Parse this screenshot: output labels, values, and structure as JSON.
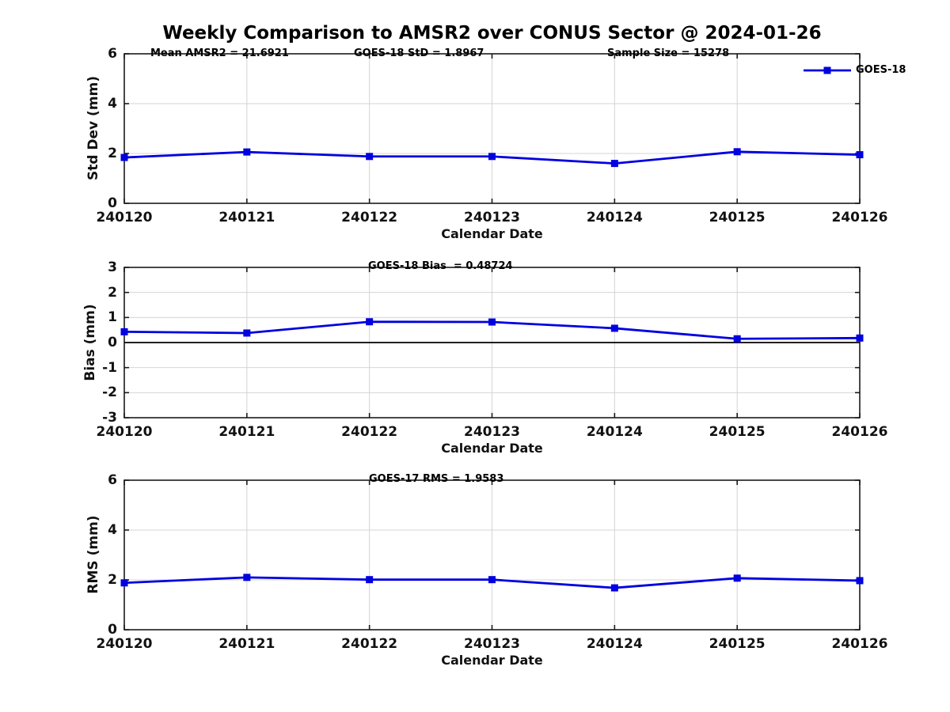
{
  "title": "Weekly Comparison to AMSR2 over CONUS Sector @ 2024-01-26",
  "legend": {
    "label": "GOES-18",
    "position": "top-right"
  },
  "colors": {
    "line": "#0000E0",
    "marker": "#0000E0",
    "grid": "#D4D4D4",
    "axis": "#1A1A1A",
    "zero_line": "#000000",
    "text": "#111111",
    "background": "#FFFFFF"
  },
  "chart_data": [
    {
      "type": "line",
      "panel": "std-dev",
      "annotations": [
        "Mean AMSR2 = 21.6921",
        "GOES-18 StD = 1.8967",
        "Sample Size = 15278"
      ],
      "ylabel": "Std Dev (mm)",
      "xlabel": "Calendar Date",
      "categories": [
        "240120",
        "240121",
        "240122",
        "240123",
        "240124",
        "240125",
        "240126"
      ],
      "ylim": [
        0,
        6
      ],
      "yticks": [
        0,
        2,
        4,
        6
      ],
      "grid": true,
      "zero_line": false,
      "series": [
        {
          "name": "GOES-18",
          "values": [
            1.84,
            2.06,
            1.88,
            1.88,
            1.6,
            2.07,
            1.95
          ]
        }
      ]
    },
    {
      "type": "line",
      "panel": "bias",
      "annotations": [
        "GOES-18 Bias  = 0.48724"
      ],
      "ylabel": "Bias (mm)",
      "xlabel": "Calendar Date",
      "categories": [
        "240120",
        "240121",
        "240122",
        "240123",
        "240124",
        "240125",
        "240126"
      ],
      "ylim": [
        -3,
        3
      ],
      "yticks": [
        3,
        2,
        1,
        0,
        -1,
        -2,
        -3
      ],
      "grid": true,
      "zero_line": true,
      "series": [
        {
          "name": "GOES-18",
          "values": [
            0.43,
            0.38,
            0.83,
            0.82,
            0.57,
            0.15,
            0.18
          ]
        }
      ]
    },
    {
      "type": "line",
      "panel": "rms",
      "annotations": [
        "GOES-17 RMS = 1.9583"
      ],
      "ylabel": "RMS (mm)",
      "xlabel": "Calendar Date",
      "categories": [
        "240120",
        "240121",
        "240122",
        "240123",
        "240124",
        "240125",
        "240126"
      ],
      "ylim": [
        0,
        6
      ],
      "yticks": [
        0,
        2,
        4,
        6
      ],
      "grid": true,
      "zero_line": false,
      "series": [
        {
          "name": "GOES-18",
          "values": [
            1.88,
            2.1,
            2.01,
            2.01,
            1.68,
            2.07,
            1.97
          ]
        }
      ]
    }
  ]
}
